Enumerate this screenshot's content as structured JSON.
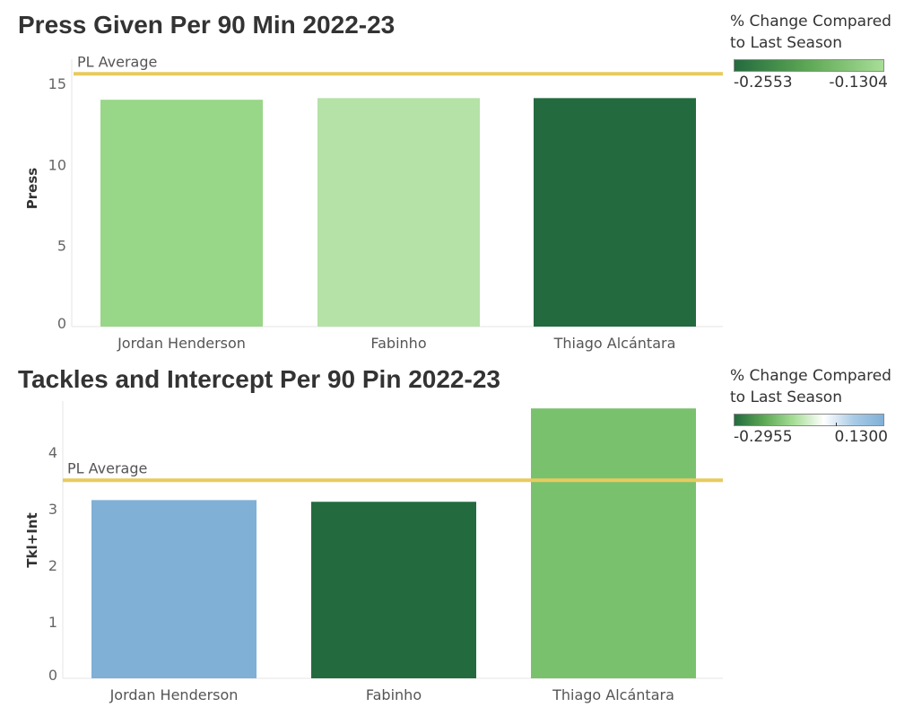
{
  "chart_data": [
    {
      "type": "bar",
      "title": "Press Given Per 90 Min 2022-23",
      "ylabel": "Press",
      "xlabel": "",
      "categories": [
        "Jordan Henderson",
        "Fabinho",
        "Thiago Alcántara"
      ],
      "values": [
        14.0,
        14.1,
        14.1
      ],
      "bar_colors": [
        "#98d688",
        "#b4e2a7",
        "#236b3e"
      ],
      "ylim": [
        0,
        16.5
      ],
      "yticks": [
        0,
        5,
        10,
        15
      ],
      "reference_line": {
        "label": "PL Average",
        "value": 15.6,
        "color": "#e8cb5f"
      },
      "legend": {
        "title": "% Change Compared to Last Season",
        "min_label": "-0.2553",
        "max_label": "-0.1304",
        "gradient": [
          "#236b3e",
          "#5ea955",
          "#a8de98"
        ],
        "placement": "top-right"
      }
    },
    {
      "type": "bar",
      "title": "Tackles and Intercept Per 90 Pin 2022-23",
      "ylabel": "Tkl+Int",
      "xlabel": "",
      "categories": [
        "Jordan Henderson",
        "Fabinho",
        "Thiago Alcántara"
      ],
      "values": [
        3.15,
        3.12,
        4.77
      ],
      "bar_colors": [
        "#80b0d6",
        "#236b3e",
        "#7ac16d"
      ],
      "ylim": [
        0,
        4.9
      ],
      "yticks": [
        0,
        1,
        2,
        3,
        4
      ],
      "reference_line": {
        "label": "PL Average",
        "value": 3.5,
        "color": "#e8cb5f"
      },
      "legend": {
        "title": "% Change Compared to Last Season",
        "min_label": "-0.2955",
        "max_label": "0.1300",
        "gradient": [
          "#236b3e",
          "#5ea955",
          "#a8de98",
          "#ffffff",
          "#a8cbe6",
          "#80b0d6"
        ],
        "mid_tick": true,
        "placement": "top-right"
      }
    }
  ]
}
